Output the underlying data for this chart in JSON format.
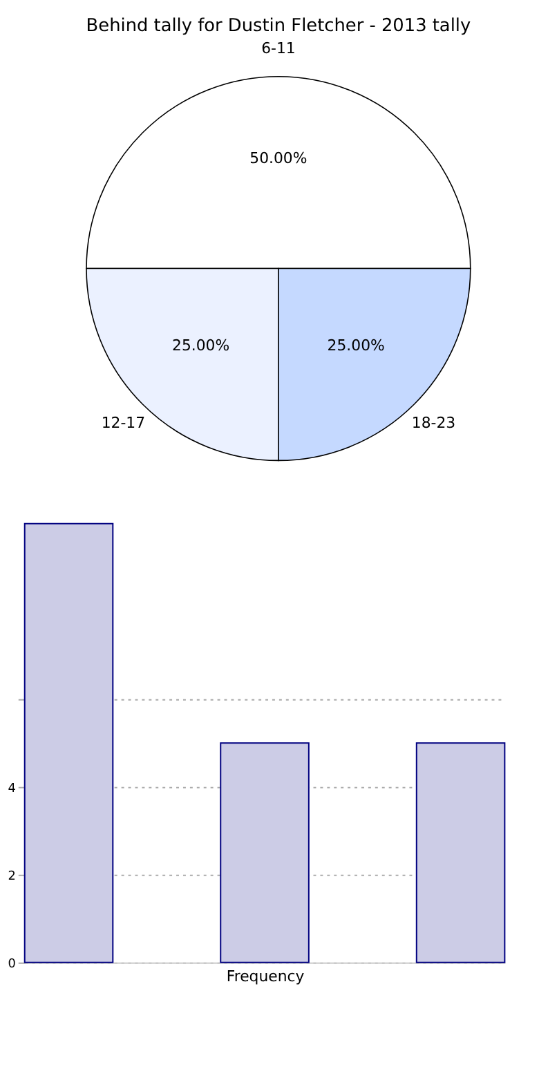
{
  "chart_data": [
    {
      "type": "pie",
      "title": "Behind tally for Dustin Fletcher - 2013 tally",
      "categories": [
        "6-11",
        "12-17",
        "18-23"
      ],
      "values": [
        50,
        25,
        25
      ],
      "colors": [
        "#ffffff",
        "#ebf1ff",
        "#c5d9ff"
      ],
      "value_labels": [
        "50.00%",
        "25.00%",
        "25.00%"
      ]
    },
    {
      "type": "bar",
      "xlabel": "Frequency",
      "categories": [
        null,
        null,
        null
      ],
      "values": [
        10,
        5,
        5
      ],
      "color": "#ccccE6",
      "ylim": [
        0,
        10
      ],
      "yticks": [
        0,
        2,
        4,
        {
          "value": 6,
          "label": null
        }
      ],
      "grid": "y"
    }
  ]
}
